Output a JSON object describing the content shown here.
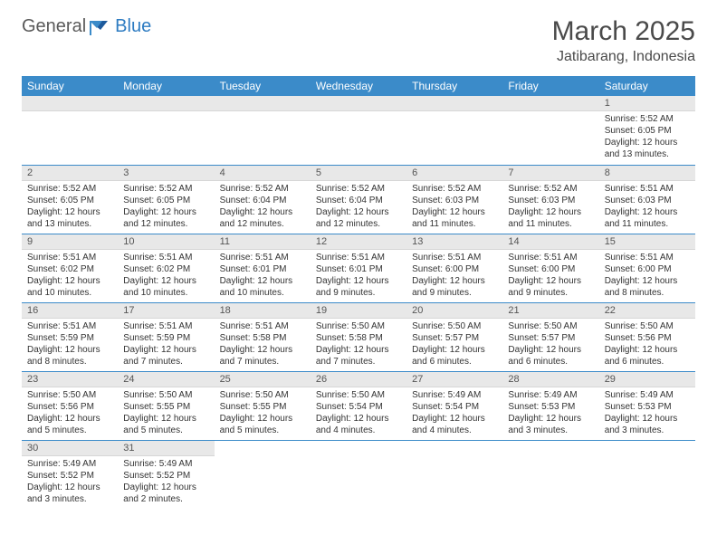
{
  "logo": {
    "part1": "General",
    "part2": "Blue"
  },
  "title": "March 2025",
  "location": "Jatibarang, Indonesia",
  "header_bg": "#3b8bc9",
  "header_fg": "#ffffff",
  "daynum_bg": "#e8e8e8",
  "border_color": "#3b8bc9",
  "weekdays": [
    "Sunday",
    "Monday",
    "Tuesday",
    "Wednesday",
    "Thursday",
    "Friday",
    "Saturday"
  ],
  "weeks": [
    [
      null,
      null,
      null,
      null,
      null,
      null,
      {
        "n": "1",
        "sr": "Sunrise: 5:52 AM",
        "ss": "Sunset: 6:05 PM",
        "dl1": "Daylight: 12 hours",
        "dl2": "and 13 minutes."
      }
    ],
    [
      {
        "n": "2",
        "sr": "Sunrise: 5:52 AM",
        "ss": "Sunset: 6:05 PM",
        "dl1": "Daylight: 12 hours",
        "dl2": "and 13 minutes."
      },
      {
        "n": "3",
        "sr": "Sunrise: 5:52 AM",
        "ss": "Sunset: 6:05 PM",
        "dl1": "Daylight: 12 hours",
        "dl2": "and 12 minutes."
      },
      {
        "n": "4",
        "sr": "Sunrise: 5:52 AM",
        "ss": "Sunset: 6:04 PM",
        "dl1": "Daylight: 12 hours",
        "dl2": "and 12 minutes."
      },
      {
        "n": "5",
        "sr": "Sunrise: 5:52 AM",
        "ss": "Sunset: 6:04 PM",
        "dl1": "Daylight: 12 hours",
        "dl2": "and 12 minutes."
      },
      {
        "n": "6",
        "sr": "Sunrise: 5:52 AM",
        "ss": "Sunset: 6:03 PM",
        "dl1": "Daylight: 12 hours",
        "dl2": "and 11 minutes."
      },
      {
        "n": "7",
        "sr": "Sunrise: 5:52 AM",
        "ss": "Sunset: 6:03 PM",
        "dl1": "Daylight: 12 hours",
        "dl2": "and 11 minutes."
      },
      {
        "n": "8",
        "sr": "Sunrise: 5:51 AM",
        "ss": "Sunset: 6:03 PM",
        "dl1": "Daylight: 12 hours",
        "dl2": "and 11 minutes."
      }
    ],
    [
      {
        "n": "9",
        "sr": "Sunrise: 5:51 AM",
        "ss": "Sunset: 6:02 PM",
        "dl1": "Daylight: 12 hours",
        "dl2": "and 10 minutes."
      },
      {
        "n": "10",
        "sr": "Sunrise: 5:51 AM",
        "ss": "Sunset: 6:02 PM",
        "dl1": "Daylight: 12 hours",
        "dl2": "and 10 minutes."
      },
      {
        "n": "11",
        "sr": "Sunrise: 5:51 AM",
        "ss": "Sunset: 6:01 PM",
        "dl1": "Daylight: 12 hours",
        "dl2": "and 10 minutes."
      },
      {
        "n": "12",
        "sr": "Sunrise: 5:51 AM",
        "ss": "Sunset: 6:01 PM",
        "dl1": "Daylight: 12 hours",
        "dl2": "and 9 minutes."
      },
      {
        "n": "13",
        "sr": "Sunrise: 5:51 AM",
        "ss": "Sunset: 6:00 PM",
        "dl1": "Daylight: 12 hours",
        "dl2": "and 9 minutes."
      },
      {
        "n": "14",
        "sr": "Sunrise: 5:51 AM",
        "ss": "Sunset: 6:00 PM",
        "dl1": "Daylight: 12 hours",
        "dl2": "and 9 minutes."
      },
      {
        "n": "15",
        "sr": "Sunrise: 5:51 AM",
        "ss": "Sunset: 6:00 PM",
        "dl1": "Daylight: 12 hours",
        "dl2": "and 8 minutes."
      }
    ],
    [
      {
        "n": "16",
        "sr": "Sunrise: 5:51 AM",
        "ss": "Sunset: 5:59 PM",
        "dl1": "Daylight: 12 hours",
        "dl2": "and 8 minutes."
      },
      {
        "n": "17",
        "sr": "Sunrise: 5:51 AM",
        "ss": "Sunset: 5:59 PM",
        "dl1": "Daylight: 12 hours",
        "dl2": "and 7 minutes."
      },
      {
        "n": "18",
        "sr": "Sunrise: 5:51 AM",
        "ss": "Sunset: 5:58 PM",
        "dl1": "Daylight: 12 hours",
        "dl2": "and 7 minutes."
      },
      {
        "n": "19",
        "sr": "Sunrise: 5:50 AM",
        "ss": "Sunset: 5:58 PM",
        "dl1": "Daylight: 12 hours",
        "dl2": "and 7 minutes."
      },
      {
        "n": "20",
        "sr": "Sunrise: 5:50 AM",
        "ss": "Sunset: 5:57 PM",
        "dl1": "Daylight: 12 hours",
        "dl2": "and 6 minutes."
      },
      {
        "n": "21",
        "sr": "Sunrise: 5:50 AM",
        "ss": "Sunset: 5:57 PM",
        "dl1": "Daylight: 12 hours",
        "dl2": "and 6 minutes."
      },
      {
        "n": "22",
        "sr": "Sunrise: 5:50 AM",
        "ss": "Sunset: 5:56 PM",
        "dl1": "Daylight: 12 hours",
        "dl2": "and 6 minutes."
      }
    ],
    [
      {
        "n": "23",
        "sr": "Sunrise: 5:50 AM",
        "ss": "Sunset: 5:56 PM",
        "dl1": "Daylight: 12 hours",
        "dl2": "and 5 minutes."
      },
      {
        "n": "24",
        "sr": "Sunrise: 5:50 AM",
        "ss": "Sunset: 5:55 PM",
        "dl1": "Daylight: 12 hours",
        "dl2": "and 5 minutes."
      },
      {
        "n": "25",
        "sr": "Sunrise: 5:50 AM",
        "ss": "Sunset: 5:55 PM",
        "dl1": "Daylight: 12 hours",
        "dl2": "and 5 minutes."
      },
      {
        "n": "26",
        "sr": "Sunrise: 5:50 AM",
        "ss": "Sunset: 5:54 PM",
        "dl1": "Daylight: 12 hours",
        "dl2": "and 4 minutes."
      },
      {
        "n": "27",
        "sr": "Sunrise: 5:49 AM",
        "ss": "Sunset: 5:54 PM",
        "dl1": "Daylight: 12 hours",
        "dl2": "and 4 minutes."
      },
      {
        "n": "28",
        "sr": "Sunrise: 5:49 AM",
        "ss": "Sunset: 5:53 PM",
        "dl1": "Daylight: 12 hours",
        "dl2": "and 3 minutes."
      },
      {
        "n": "29",
        "sr": "Sunrise: 5:49 AM",
        "ss": "Sunset: 5:53 PM",
        "dl1": "Daylight: 12 hours",
        "dl2": "and 3 minutes."
      }
    ],
    [
      {
        "n": "30",
        "sr": "Sunrise: 5:49 AM",
        "ss": "Sunset: 5:52 PM",
        "dl1": "Daylight: 12 hours",
        "dl2": "and 3 minutes."
      },
      {
        "n": "31",
        "sr": "Sunrise: 5:49 AM",
        "ss": "Sunset: 5:52 PM",
        "dl1": "Daylight: 12 hours",
        "dl2": "and 2 minutes."
      },
      null,
      null,
      null,
      null,
      null
    ]
  ]
}
